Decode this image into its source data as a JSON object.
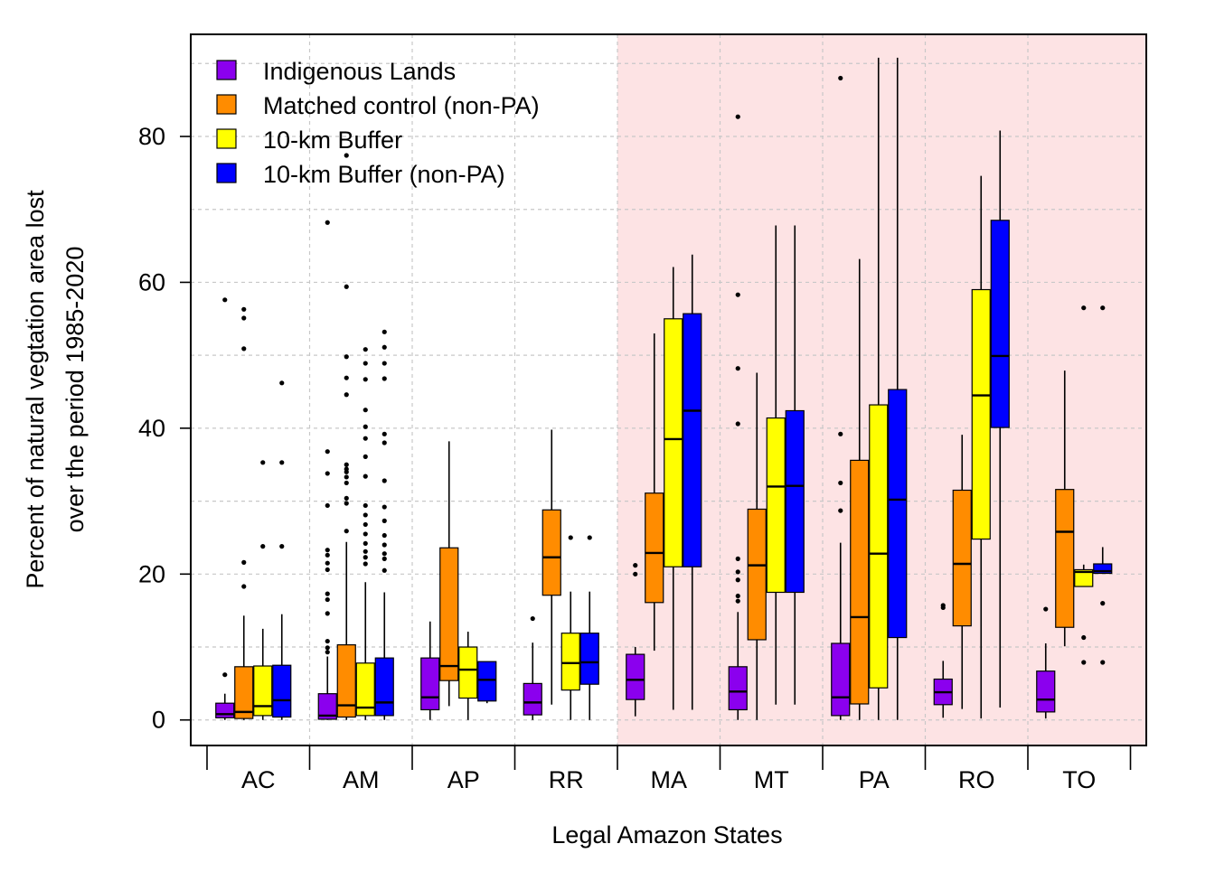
{
  "chart_data": {
    "type": "box",
    "xlabel": "Legal Amazon States",
    "ylabel_lines": [
      "Percent of natural vegtation area lost",
      "over the period 1985-2020"
    ],
    "ylim": [
      -3.5,
      94
    ],
    "yticks": [
      0,
      20,
      40,
      60,
      80
    ],
    "categories": [
      "AC",
      "AM",
      "AP",
      "RR",
      "MA",
      "MT",
      "PA",
      "RO",
      "TO"
    ],
    "highlight": {
      "from_category": "MA",
      "to_category": "TO",
      "color": "#fde3e4"
    },
    "grid": true,
    "legend_position": "top-left",
    "series": [
      {
        "name": "Indigenous Lands",
        "color": "#8b00ee",
        "boxes": [
          {
            "q1": 0.3,
            "median": 0.8,
            "q3": 2.3,
            "whisker_low": 0,
            "whisker_high": 3.6,
            "outliers": [
              6.2,
              57.6
            ]
          },
          {
            "q1": 0.1,
            "median": 0.6,
            "q3": 3.6,
            "whisker_low": 0,
            "whisker_high": 8.7,
            "outliers": [
              9.3,
              9.9,
              10.8,
              14.6,
              16.5,
              17.3,
              20.6,
              21.5,
              22.6,
              23.3,
              29.4,
              33.8,
              36.8,
              68.2
            ]
          },
          {
            "q1": 1.4,
            "median": 3.1,
            "q3": 8.5,
            "whisker_low": 0,
            "whisker_high": 13.5,
            "outliers": []
          },
          {
            "q1": 0.7,
            "median": 2.4,
            "q3": 5,
            "whisker_low": 0,
            "whisker_high": 10.6,
            "outliers": [
              13.9
            ]
          },
          {
            "q1": 2.8,
            "median": 5.5,
            "q3": 9,
            "whisker_low": 0.5,
            "whisker_high": 10,
            "outliers": [
              20,
              21.2
            ]
          },
          {
            "q1": 1.4,
            "median": 3.9,
            "q3": 7.3,
            "whisker_low": 0,
            "whisker_high": 14.8,
            "outliers": [
              16.3,
              17,
              19.2,
              20.3,
              22.1,
              40.6,
              48.2,
              58.3,
              82.7
            ]
          },
          {
            "q1": 0.6,
            "median": 3.1,
            "q3": 10.5,
            "whisker_low": 0,
            "whisker_high": 24.3,
            "outliers": [
              28.7,
              32.5,
              39.2,
              88
            ]
          },
          {
            "q1": 2.1,
            "median": 3.8,
            "q3": 5.6,
            "whisker_low": 0.3,
            "whisker_high": 8.1,
            "outliers": [
              15.4,
              15.7
            ]
          },
          {
            "q1": 1.1,
            "median": 2.8,
            "q3": 6.7,
            "whisker_low": 0.2,
            "whisker_high": 10.5,
            "outliers": [
              15.2
            ]
          }
        ]
      },
      {
        "name": "Matched control (non-PA)",
        "color": "#ff8c00",
        "boxes": [
          {
            "q1": 0.2,
            "median": 1.1,
            "q3": 7.3,
            "whisker_low": 0,
            "whisker_high": 14.3,
            "outliers": [
              18.3,
              21.6,
              50.9,
              55.1,
              56.3
            ]
          },
          {
            "q1": 0.4,
            "median": 2,
            "q3": 10.3,
            "whisker_low": 0,
            "whisker_high": 24.4,
            "outliers": [
              25.9,
              29.7,
              30.4,
              32.5,
              33.3,
              34,
              34.4,
              35,
              44.6,
              46.9,
              49.8,
              59.4,
              77.4
            ]
          },
          {
            "q1": 5.4,
            "median": 7.4,
            "q3": 23.6,
            "whisker_low": 1.9,
            "whisker_high": 38.2,
            "outliers": []
          },
          {
            "q1": 17.1,
            "median": 22.3,
            "q3": 28.8,
            "whisker_low": 2.1,
            "whisker_high": 39.8,
            "outliers": []
          },
          {
            "q1": 16.1,
            "median": 22.9,
            "q3": 31.1,
            "whisker_low": 9.5,
            "whisker_high": 53,
            "outliers": []
          },
          {
            "q1": 11,
            "median": 21.2,
            "q3": 28.9,
            "whisker_low": 0,
            "whisker_high": 47.6,
            "outliers": []
          },
          {
            "q1": 2.2,
            "median": 14.1,
            "q3": 35.6,
            "whisker_low": 0,
            "whisker_high": 63.2,
            "outliers": []
          },
          {
            "q1": 12.9,
            "median": 21.4,
            "q3": 31.5,
            "whisker_low": 1.5,
            "whisker_high": 39.1,
            "outliers": []
          },
          {
            "q1": 12.7,
            "median": 25.8,
            "q3": 31.6,
            "whisker_low": 10.1,
            "whisker_high": 47.9,
            "outliers": []
          }
        ]
      },
      {
        "name": "10-km Buffer",
        "color": "#ffff00",
        "boxes": [
          {
            "q1": 0.6,
            "median": 1.9,
            "q3": 7.4,
            "whisker_low": 0,
            "whisker_high": 12.5,
            "outliers": [
              23.8,
              35.3
            ]
          },
          {
            "q1": 0.6,
            "median": 1.7,
            "q3": 7.8,
            "whisker_low": 0,
            "whisker_high": 18.9,
            "outliers": [
              21.4,
              22.3,
              23.1,
              24.2,
              25.5,
              26.8,
              28.1,
              29.4,
              33.4,
              36.1,
              38.6,
              40.2,
              42.5,
              46.7,
              48.9,
              50.8
            ]
          },
          {
            "q1": 3,
            "median": 6.9,
            "q3": 10,
            "whisker_low": 0,
            "whisker_high": 12.1,
            "outliers": []
          },
          {
            "q1": 4.1,
            "median": 7.8,
            "q3": 11.9,
            "whisker_low": 0,
            "whisker_high": 17.6,
            "outliers": [
              25
            ]
          },
          {
            "q1": 21,
            "median": 38.5,
            "q3": 55,
            "whisker_low": 1.4,
            "whisker_high": 62.1,
            "outliers": []
          },
          {
            "q1": 17.5,
            "median": 32,
            "q3": 41.4,
            "whisker_low": 2.1,
            "whisker_high": 67.8,
            "outliers": []
          },
          {
            "q1": 4.4,
            "median": 22.8,
            "q3": 43.2,
            "whisker_low": 0,
            "whisker_high": 90.8,
            "outliers": []
          },
          {
            "q1": 24.8,
            "median": 44.5,
            "q3": 59,
            "whisker_low": 0.2,
            "whisker_high": 74.6,
            "outliers": []
          },
          {
            "q1": 18.3,
            "median": 20.3,
            "q3": 20.6,
            "whisker_low": 18.3,
            "whisker_high": 21.3,
            "outliers": [
              11.3,
              7.9,
              56.5
            ]
          }
        ]
      },
      {
        "name": "10-km Buffer (non-PA)",
        "color": "#0000ff",
        "boxes": [
          {
            "q1": 0.4,
            "median": 2.7,
            "q3": 7.5,
            "whisker_low": 0,
            "whisker_high": 14.5,
            "outliers": [
              23.8,
              35.3,
              46.2
            ]
          },
          {
            "q1": 0.6,
            "median": 2.4,
            "q3": 8.5,
            "whisker_low": 0,
            "whisker_high": 17.5,
            "outliers": [
              20.5,
              22.1,
              22.8,
              24,
              25.3,
              27.3,
              29.2,
              32.8,
              38,
              39.2,
              46.8,
              48.9,
              51.1,
              53.2
            ]
          },
          {
            "q1": 2.6,
            "median": 5.5,
            "q3": 8,
            "whisker_low": 2.3,
            "whisker_high": 8,
            "outliers": []
          },
          {
            "q1": 4.9,
            "median": 7.9,
            "q3": 11.9,
            "whisker_low": 0,
            "whisker_high": 17.6,
            "outliers": [
              25
            ]
          },
          {
            "q1": 21,
            "median": 42.4,
            "q3": 55.7,
            "whisker_low": 1.4,
            "whisker_high": 63.8,
            "outliers": []
          },
          {
            "q1": 17.5,
            "median": 32.1,
            "q3": 42.4,
            "whisker_low": 2.1,
            "whisker_high": 67.8,
            "outliers": []
          },
          {
            "q1": 11.3,
            "median": 30.2,
            "q3": 45.3,
            "whisker_low": 0,
            "whisker_high": 90.8,
            "outliers": []
          },
          {
            "q1": 40.1,
            "median": 49.9,
            "q3": 68.5,
            "whisker_low": 1.7,
            "whisker_high": 80.8,
            "outliers": []
          },
          {
            "q1": 20.1,
            "median": 20.4,
            "q3": 21.4,
            "whisker_low": 20.1,
            "whisker_high": 23.7,
            "outliers": [
              16,
              7.9,
              56.5
            ]
          }
        ]
      }
    ]
  }
}
